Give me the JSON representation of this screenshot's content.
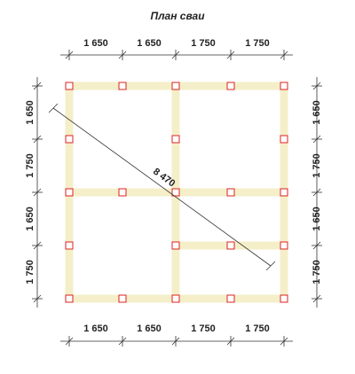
{
  "title": "План сваи",
  "dimensions": {
    "top": [
      "1 650",
      "1 650",
      "1 750",
      "1 750"
    ],
    "bottom": [
      "1 650",
      "1 650",
      "1 750",
      "1 750"
    ],
    "left": [
      "1 650",
      "1 750",
      "1 650",
      "1 750"
    ],
    "right": [
      "1 650",
      "1 750",
      "1 650",
      "1 750"
    ]
  },
  "diagonal": "8 470"
}
